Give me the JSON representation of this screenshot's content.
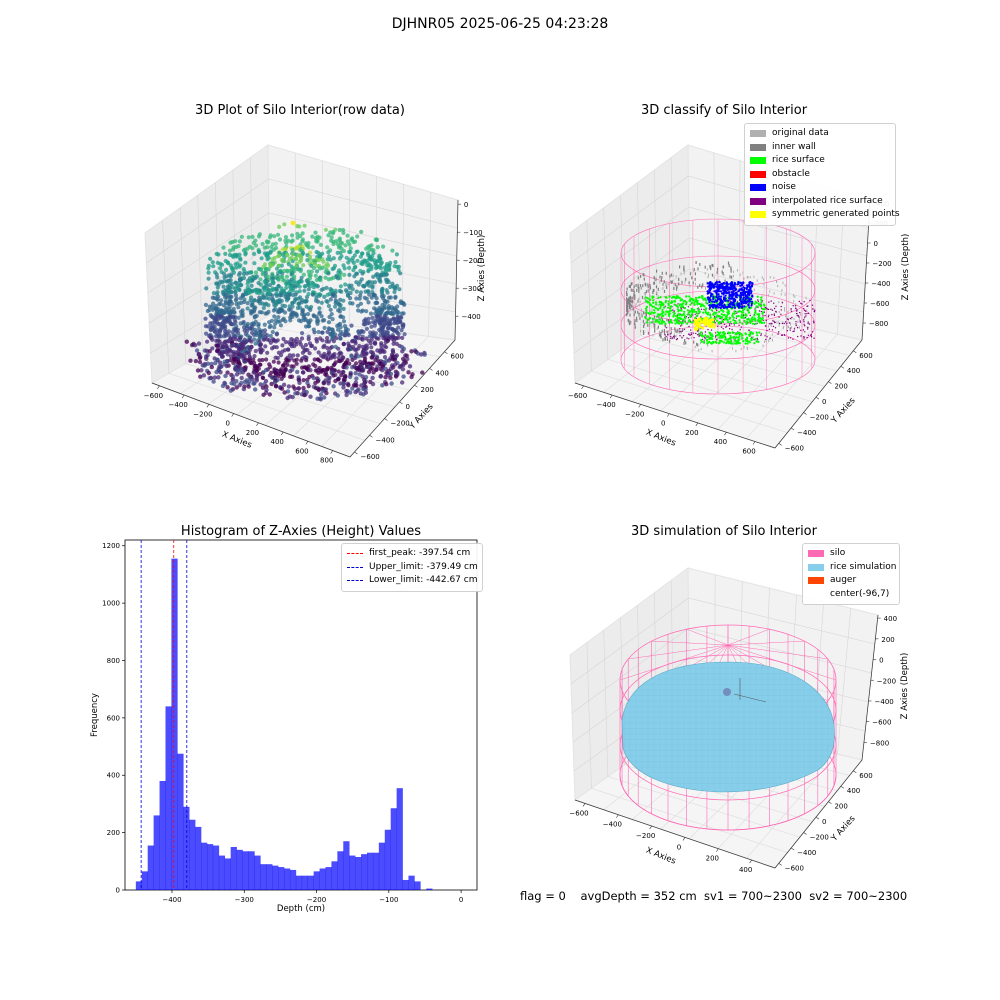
{
  "figure": {
    "suptitle": "DJHNR05 2025-06-25 04:23:28",
    "footer": "flag = 0    avgDepth = 352 cm  sv1 = 700~2300  sv2 = 700~2300"
  },
  "chart_data": [
    {
      "type": "scatter",
      "title": "3D Plot of Silo Interior(row data)",
      "xlabel": "X Axies",
      "ylabel": "Y Axies",
      "zlabel": "Z Axies (Depth)",
      "x_ticks": [
        "−600",
        "−400",
        "−200",
        "0",
        "200",
        "400",
        "600",
        "800"
      ],
      "y_ticks": [
        "−600",
        "−400",
        "−200",
        "0",
        "200",
        "400",
        "600"
      ],
      "z_ticks": [
        "0",
        "−100",
        "−200",
        "−300",
        "−400"
      ],
      "xlim": [
        -650,
        850
      ],
      "ylim": [
        -650,
        700
      ],
      "zlim": [
        -450,
        20
      ],
      "colormap": "viridis"
    },
    {
      "type": "scatter",
      "title": "3D classify of Silo Interior",
      "xlabel": "X Axies",
      "ylabel": "Y Axies",
      "zlabel": "Z Axies (Depth)",
      "x_ticks": [
        "−600",
        "−400",
        "−200",
        "0",
        "200",
        "400",
        "600"
      ],
      "y_ticks": [
        "−600",
        "−400",
        "−200",
        "0",
        "200",
        "400",
        "600"
      ],
      "z_ticks": [
        "400",
        "200",
        "0",
        "−200",
        "−400",
        "−600",
        "−800"
      ],
      "legend": [
        {
          "name": "original data",
          "color": "#b0b0b0"
        },
        {
          "name": "inner wall",
          "color": "#808080"
        },
        {
          "name": "rice surface",
          "color": "#00ff00"
        },
        {
          "name": "obstacle",
          "color": "#ff0000"
        },
        {
          "name": "noise",
          "color": "#0000ff"
        },
        {
          "name": "interpolated rice surface",
          "color": "#800080"
        },
        {
          "name": "symmetric generated points",
          "color": "#ffff00"
        }
      ],
      "silo_color": "#ff69b4"
    },
    {
      "type": "bar",
      "title": "Histogram of Z-Axies (Height) Values",
      "xlabel": "Depth (cm)",
      "ylabel": "Frequency",
      "xlim": [
        -465,
        22
      ],
      "ylim": [
        0,
        1220
      ],
      "x_ticks": [
        -400,
        -300,
        -200,
        -100,
        0
      ],
      "x_tick_labels": [
        "−400",
        "−300",
        "−200",
        "−100",
        "0"
      ],
      "y_ticks": [
        0,
        200,
        400,
        600,
        800,
        1000,
        1200
      ],
      "bar_color": "#0000ff",
      "bin_start": -450,
      "bin_width": 8.2,
      "values": [
        30,
        65,
        155,
        260,
        380,
        640,
        1155,
        475,
        290,
        245,
        220,
        165,
        160,
        155,
        120,
        110,
        150,
        140,
        135,
        135,
        120,
        90,
        90,
        85,
        80,
        75,
        70,
        50,
        50,
        50,
        65,
        75,
        80,
        100,
        135,
        170,
        120,
        115,
        125,
        130,
        130,
        165,
        210,
        285,
        355,
        35,
        50,
        30,
        0,
        5
      ],
      "vlines": [
        {
          "label": "first_peak: -397.54 cm",
          "x": -397.54,
          "color": "#ff0000"
        },
        {
          "label": "Upper_limit: -379.49 cm",
          "x": -379.49,
          "color": "#0000cc"
        },
        {
          "label": "Lower_limit: -442.67 cm",
          "x": -442.67,
          "color": "#0000cc"
        }
      ]
    },
    {
      "type": "other",
      "title": "3D simulation of Silo Interior",
      "xlabel": "X Axies",
      "ylabel": "Y Axies",
      "zlabel": "Z Axies (Depth)",
      "x_ticks": [
        "−600",
        "−400",
        "−200",
        "0",
        "200",
        "400"
      ],
      "y_ticks": [
        "−600",
        "−400",
        "−200",
        "0",
        "200",
        "400",
        "600"
      ],
      "z_ticks": [
        "400",
        "200",
        "0",
        "−200",
        "−400",
        "−600",
        "−800"
      ],
      "legend": [
        {
          "name": "silo",
          "color": "#ff69b4"
        },
        {
          "name": "rice simulation",
          "color": "#87ceeb"
        },
        {
          "name": "auger",
          "color": "#ff4500"
        },
        {
          "name": "center(-96,7)",
          "color": ""
        }
      ]
    }
  ]
}
